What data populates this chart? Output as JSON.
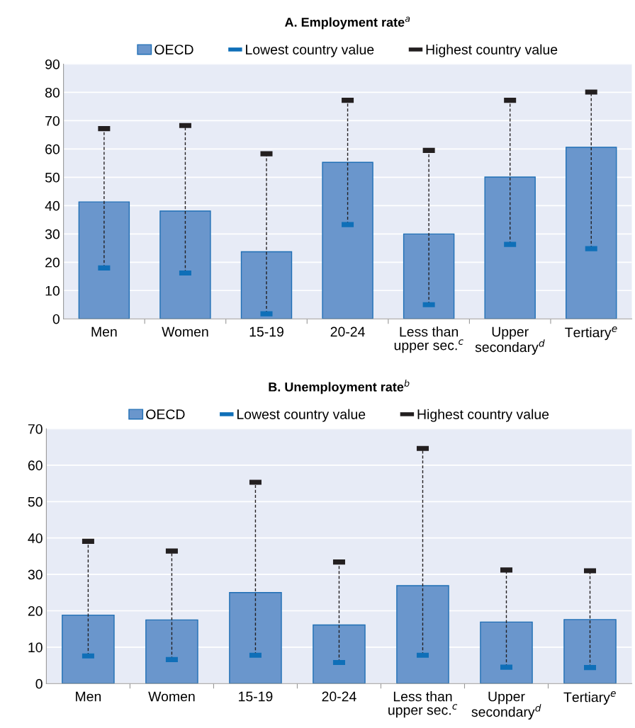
{
  "chart_data": [
    {
      "type": "bar",
      "title": "A. Employment rate$^{a}$",
      "categories": [
        "Men",
        "Women",
        "15-19",
        "20-24",
        "Less than\nupper sec.$^{c}$",
        "Upper\nsecondary$^{d}$",
        "Tertiary$^{e}$"
      ],
      "series": [
        {
          "name": "OECD",
          "color": "#6a96cc",
          "values": [
            41.3,
            38.1,
            23.7,
            55.3,
            30.0,
            50.1,
            60.6
          ]
        },
        {
          "name": "Lowest country value",
          "type": "scatter",
          "color": "#0f6fb8",
          "x": [
            "Men",
            "Women",
            "15-19",
            "20-24",
            "Less than\nupper sec.$^{c}$",
            "Upper\nsecondary$^{d}$",
            "Tertiary$^{e}$"
          ],
          "values": [
            18.0,
            16.2,
            1.8,
            33.3,
            5.0,
            26.3,
            24.8
          ]
        },
        {
          "name": "Highest country value",
          "type": "scatter",
          "color": "#231f20",
          "x": [
            "Men",
            "Women",
            "15-19",
            "20-24",
            "Less than\nupper sec.$^{c}$",
            "Upper\nsecondary$^{d}$",
            "Tertiary$^{e}$"
          ],
          "values": [
            67.2,
            68.3,
            58.3,
            77.2,
            59.5,
            77.2,
            80.1
          ]
        }
      ],
      "ylim": [
        0,
        90
      ],
      "yticks": [
        0,
        10,
        20,
        30,
        40,
        50,
        60,
        70,
        80,
        90
      ],
      "grid": "y",
      "legend": "top"
    },
    {
      "type": "bar",
      "title": "B. Unemployment rate$^{b}$",
      "categories": [
        "Men",
        "Women",
        "15-19",
        "20-24",
        "Less than\nupper sec.$^{c}$",
        "Upper\nsecondary$^{d}$",
        "Tertiary$^{e}$"
      ],
      "series": [
        {
          "name": "OECD",
          "color": "#6a96cc",
          "values": [
            18.8,
            17.5,
            25.0,
            16.1,
            26.9,
            16.9,
            17.6
          ]
        },
        {
          "name": "Lowest country value",
          "type": "scatter",
          "color": "#0f6fb8",
          "x": [
            "Men",
            "Women",
            "15-19",
            "20-24",
            "Less than\nupper sec.$^{c}$",
            "Upper\nsecondary$^{d}$",
            "Tertiary$^{e}$"
          ],
          "values": [
            7.6,
            6.6,
            7.8,
            5.8,
            7.8,
            4.5,
            4.4
          ]
        },
        {
          "name": "Highest country value",
          "type": "scatter",
          "color": "#231f20",
          "x": [
            "Men",
            "Women",
            "15-19",
            "20-24",
            "Less than\nupper sec.$^{c}$",
            "Upper\nsecondary$^{d}$",
            "Tertiary$^{e}$"
          ],
          "values": [
            39.1,
            36.4,
            55.3,
            33.4,
            64.6,
            31.2,
            31.0
          ]
        }
      ],
      "ylim": [
        0,
        70
      ],
      "yticks": [
        0,
        10,
        20,
        30,
        40,
        50,
        60,
        70
      ],
      "grid": "y",
      "legend": "top"
    }
  ]
}
